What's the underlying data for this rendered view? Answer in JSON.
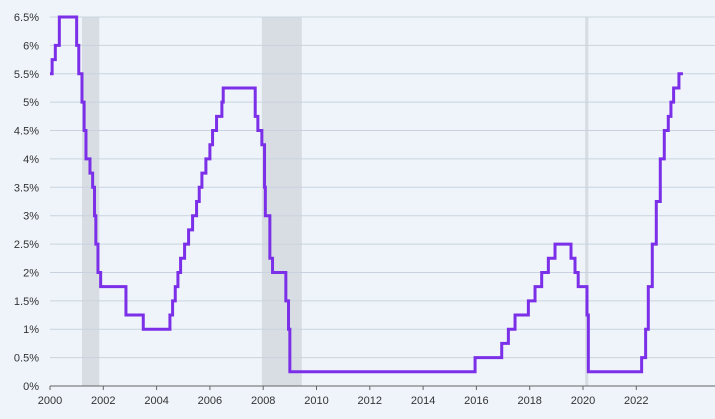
{
  "colors": {
    "background": "#eef4fa",
    "line": "#7c2fe8",
    "recession": "#d8dde3",
    "grid": "#c9d3df"
  },
  "chart_data": {
    "type": "line",
    "step": true,
    "title": "",
    "xlabel": "",
    "ylabel": "",
    "xlim": [
      2000,
      2023.8
    ],
    "ylim": [
      0,
      6.5
    ],
    "grid": true,
    "legend": "none",
    "x_ticks": [
      {
        "value": 2000,
        "label": "2000"
      },
      {
        "value": 2002,
        "label": "2002"
      },
      {
        "value": 2004,
        "label": "2004"
      },
      {
        "value": 2006,
        "label": "2006"
      },
      {
        "value": 2008,
        "label": "2008"
      },
      {
        "value": 2010,
        "label": "2010"
      },
      {
        "value": 2012,
        "label": "2012"
      },
      {
        "value": 2014,
        "label": "2014"
      },
      {
        "value": 2016,
        "label": "2016"
      },
      {
        "value": 2018,
        "label": "2018"
      },
      {
        "value": 2020,
        "label": "2020"
      },
      {
        "value": 2022,
        "label": "2022"
      }
    ],
    "y_ticks": [
      {
        "value": 0,
        "label": "0%"
      },
      {
        "value": 0.5,
        "label": "0.5%"
      },
      {
        "value": 1,
        "label": "1%"
      },
      {
        "value": 1.5,
        "label": "1.5%"
      },
      {
        "value": 2,
        "label": "2%"
      },
      {
        "value": 2.5,
        "label": "2.5%"
      },
      {
        "value": 3,
        "label": "3%"
      },
      {
        "value": 3.5,
        "label": "3.5%"
      },
      {
        "value": 4,
        "label": "4%"
      },
      {
        "value": 4.5,
        "label": "4.5%"
      },
      {
        "value": 5,
        "label": "5%"
      },
      {
        "value": 5.5,
        "label": "5.5%"
      },
      {
        "value": 6,
        "label": "6%"
      },
      {
        "value": 6.5,
        "label": "6.5%"
      }
    ],
    "shaded_periods": [
      {
        "start": 2001.2,
        "end": 2001.85
      },
      {
        "start": 2007.95,
        "end": 2009.45
      },
      {
        "start": 2020.08,
        "end": 2020.2
      }
    ],
    "series": [
      {
        "points": [
          [
            2000.0,
            5.5
          ],
          [
            2000.08,
            5.75
          ],
          [
            2000.2,
            6.0
          ],
          [
            2000.35,
            6.5
          ],
          [
            2001.0,
            6.0
          ],
          [
            2001.08,
            5.5
          ],
          [
            2001.2,
            5.0
          ],
          [
            2001.28,
            4.5
          ],
          [
            2001.35,
            4.0
          ],
          [
            2001.5,
            3.75
          ],
          [
            2001.6,
            3.5
          ],
          [
            2001.67,
            3.0
          ],
          [
            2001.72,
            2.5
          ],
          [
            2001.8,
            2.0
          ],
          [
            2001.9,
            1.75
          ],
          [
            2002.85,
            1.25
          ],
          [
            2003.5,
            1.0
          ],
          [
            2004.5,
            1.25
          ],
          [
            2004.6,
            1.5
          ],
          [
            2004.7,
            1.75
          ],
          [
            2004.8,
            2.0
          ],
          [
            2004.9,
            2.25
          ],
          [
            2005.05,
            2.5
          ],
          [
            2005.2,
            2.75
          ],
          [
            2005.35,
            3.0
          ],
          [
            2005.5,
            3.25
          ],
          [
            2005.6,
            3.5
          ],
          [
            2005.7,
            3.75
          ],
          [
            2005.85,
            4.0
          ],
          [
            2006.0,
            4.25
          ],
          [
            2006.1,
            4.5
          ],
          [
            2006.25,
            4.75
          ],
          [
            2006.45,
            5.0
          ],
          [
            2006.5,
            5.25
          ],
          [
            2007.7,
            4.75
          ],
          [
            2007.8,
            4.5
          ],
          [
            2007.95,
            4.25
          ],
          [
            2008.05,
            3.5
          ],
          [
            2008.08,
            3.0
          ],
          [
            2008.25,
            2.25
          ],
          [
            2008.35,
            2.0
          ],
          [
            2008.85,
            1.5
          ],
          [
            2008.95,
            1.0
          ],
          [
            2009.0,
            0.25
          ],
          [
            2015.95,
            0.5
          ],
          [
            2016.95,
            0.75
          ],
          [
            2017.2,
            1.0
          ],
          [
            2017.45,
            1.25
          ],
          [
            2017.95,
            1.5
          ],
          [
            2018.2,
            1.75
          ],
          [
            2018.45,
            2.0
          ],
          [
            2018.7,
            2.25
          ],
          [
            2018.95,
            2.5
          ],
          [
            2019.55,
            2.25
          ],
          [
            2019.7,
            2.0
          ],
          [
            2019.82,
            1.75
          ],
          [
            2020.15,
            1.25
          ],
          [
            2020.2,
            0.25
          ],
          [
            2022.2,
            0.5
          ],
          [
            2022.35,
            1.0
          ],
          [
            2022.45,
            1.75
          ],
          [
            2022.6,
            2.5
          ],
          [
            2022.75,
            3.25
          ],
          [
            2022.9,
            4.0
          ],
          [
            2023.05,
            4.5
          ],
          [
            2023.2,
            4.75
          ],
          [
            2023.3,
            5.0
          ],
          [
            2023.4,
            5.25
          ],
          [
            2023.6,
            5.5
          ],
          [
            2023.75,
            5.5
          ]
        ]
      }
    ]
  }
}
